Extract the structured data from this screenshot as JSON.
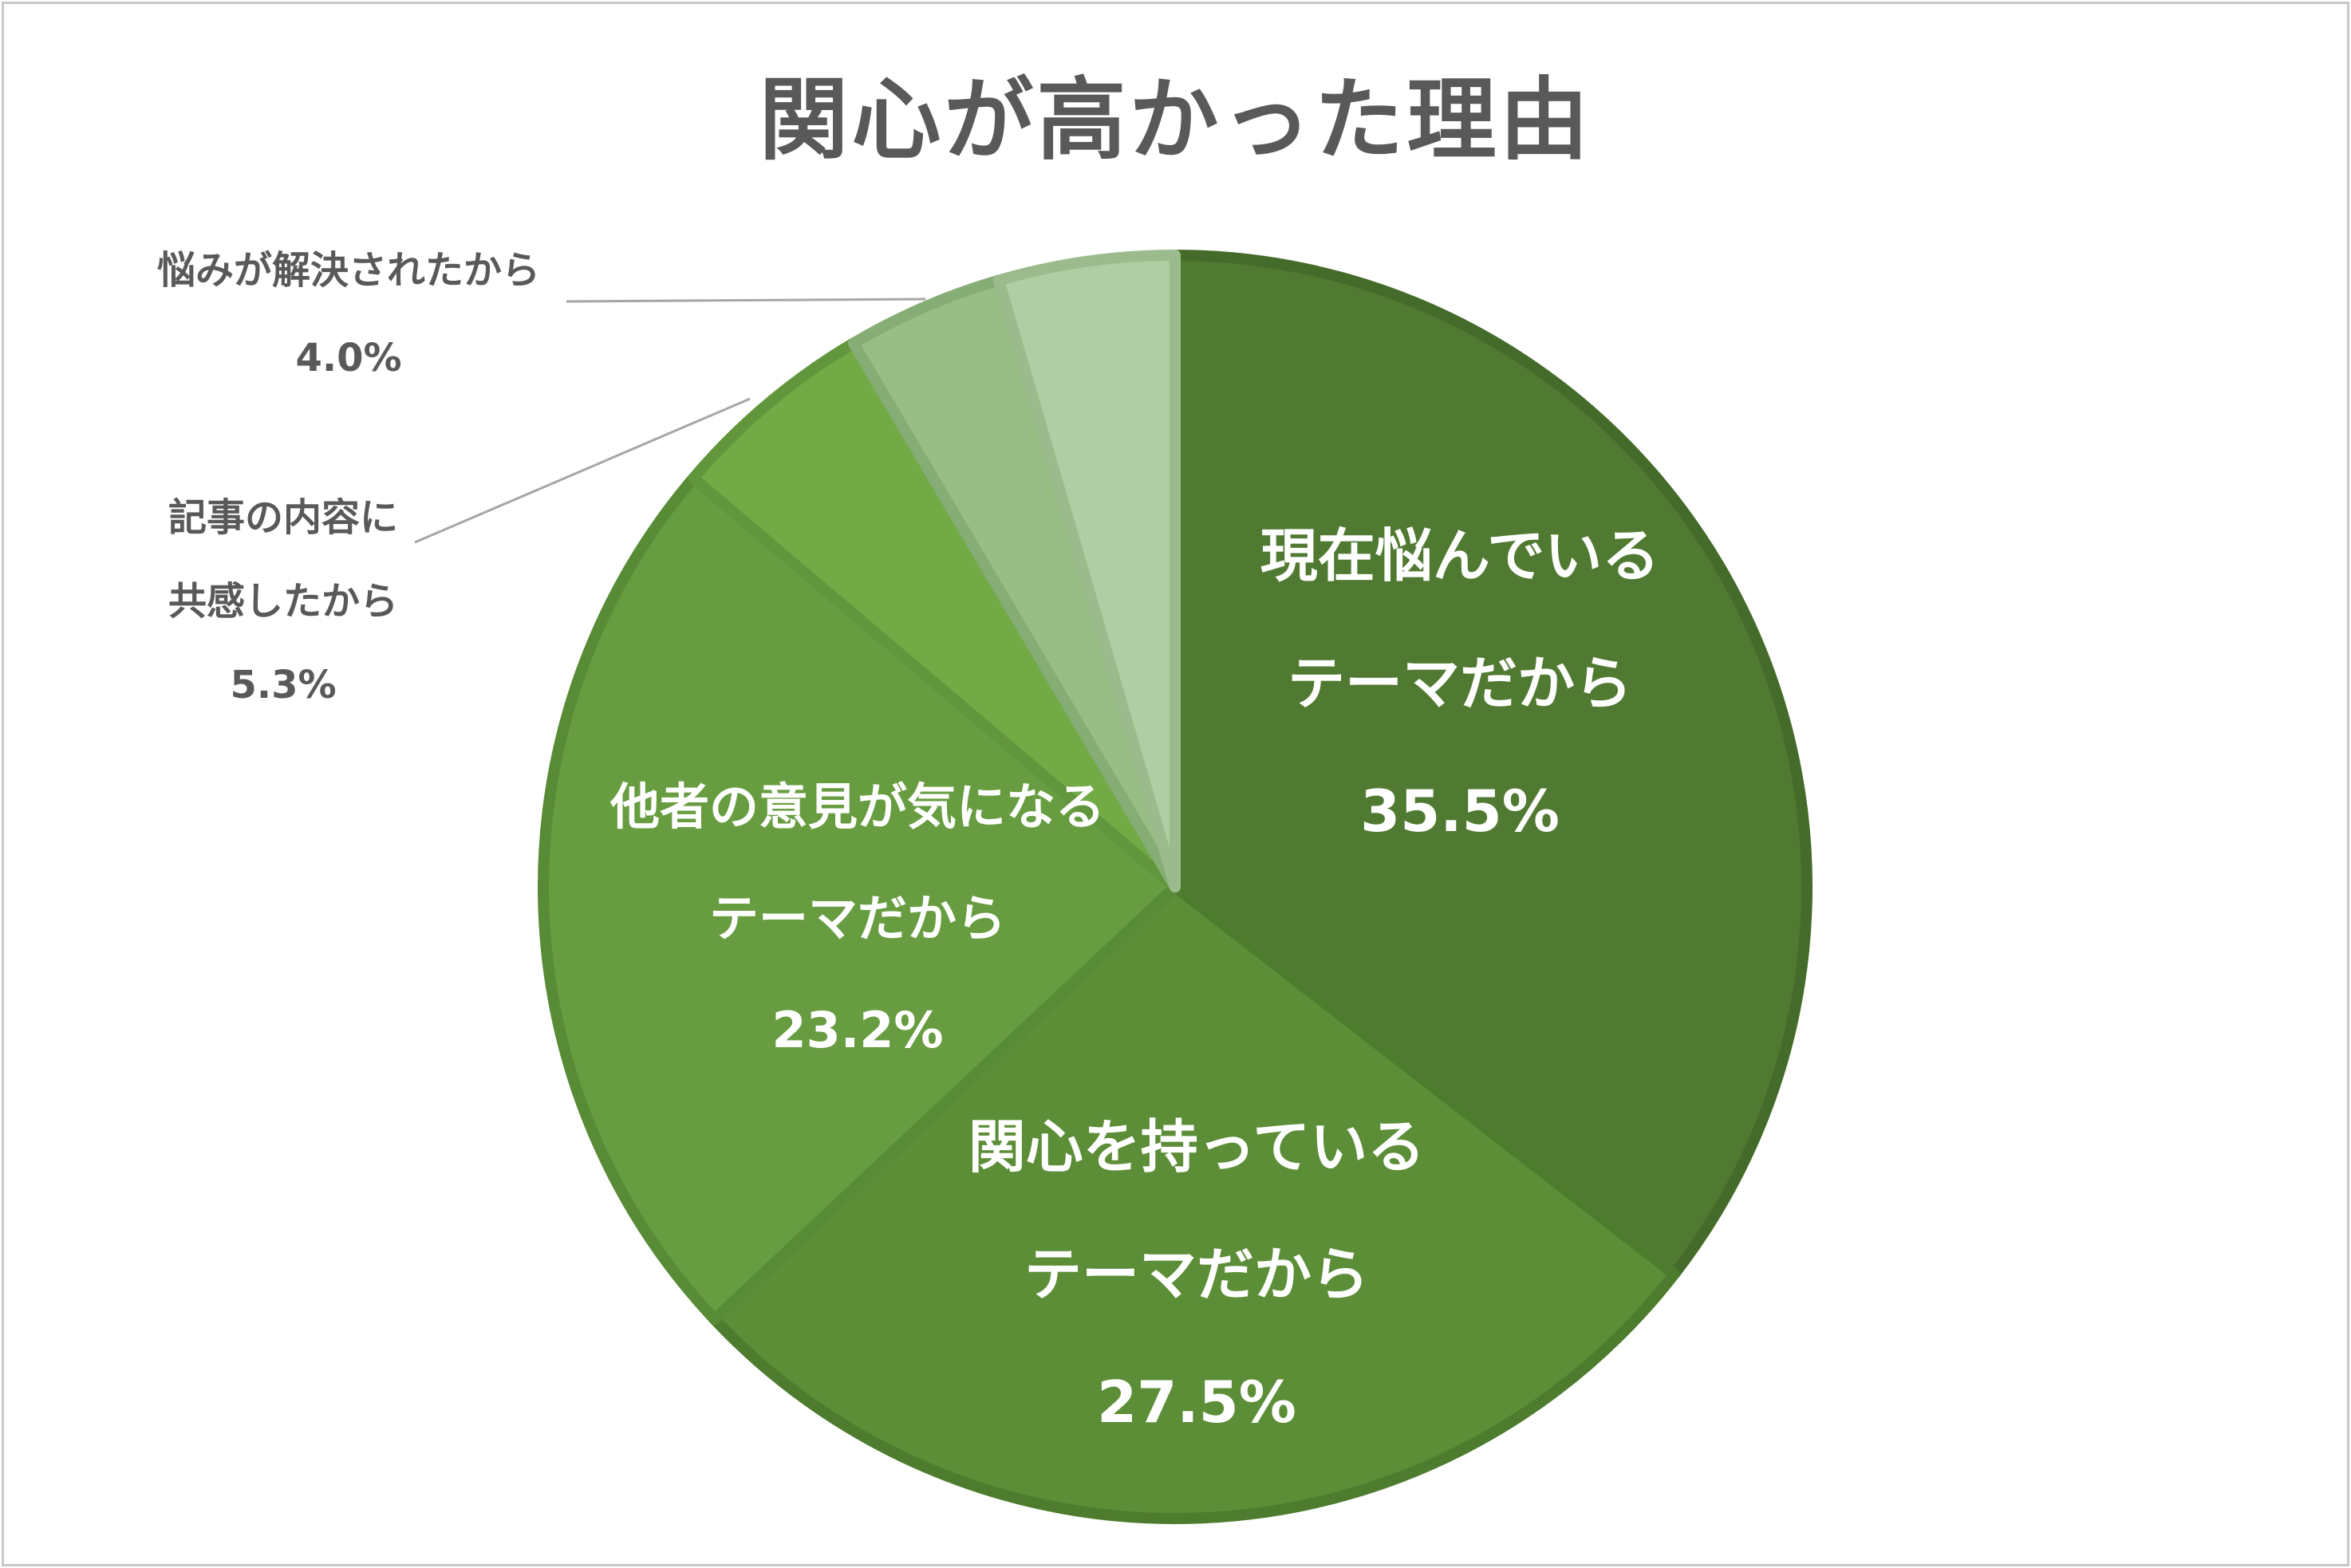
{
  "chart_data": {
    "type": "pie",
    "title": "関心が高かった理由",
    "start_angle_deg": 0,
    "direction": "clockwise",
    "slices": [
      {
        "name_lines": [
          "現在悩んでいる",
          "テーマだから"
        ],
        "value": 35.5,
        "value_label": "35.5%",
        "color": "#507A31",
        "border": "#456B2A",
        "label_color": "#FFFFFF",
        "label_placement": "inside"
      },
      {
        "name_lines": [
          "関心を持っている",
          "テーマだから"
        ],
        "value": 27.5,
        "value_label": "27.5%",
        "color": "#5C8D37",
        "border": "#4E7C2E",
        "label_color": "#FFFFFF",
        "label_placement": "inside"
      },
      {
        "name_lines": [
          "他者の意見が気になる",
          "テーマだから"
        ],
        "value": 23.2,
        "value_label": "23.2%",
        "color": "#679D40",
        "border": "#588B35",
        "label_color": "#FFFFFF",
        "label_placement": "inside"
      },
      {
        "name_lines": [
          "記事の内容に",
          "共感したから"
        ],
        "value": 5.3,
        "value_label": "5.3%",
        "color": "#72AA46",
        "border": "#62963C",
        "label_color": "#595959",
        "label_placement": "outside-left"
      },
      {
        "name_lines": [
          "悩みが解決されたから"
        ],
        "value": 4.0,
        "value_label": "4.0%",
        "color": "#98BE86",
        "border": "#86AD75",
        "label_color": "#595959",
        "label_placement": "outside-left"
      },
      {
        "name_lines": [],
        "value": 4.5,
        "value_label": "",
        "color": "#B1CDA4",
        "border": "#9BBB8D",
        "label_color": "#595959",
        "label_placement": "none"
      }
    ]
  }
}
